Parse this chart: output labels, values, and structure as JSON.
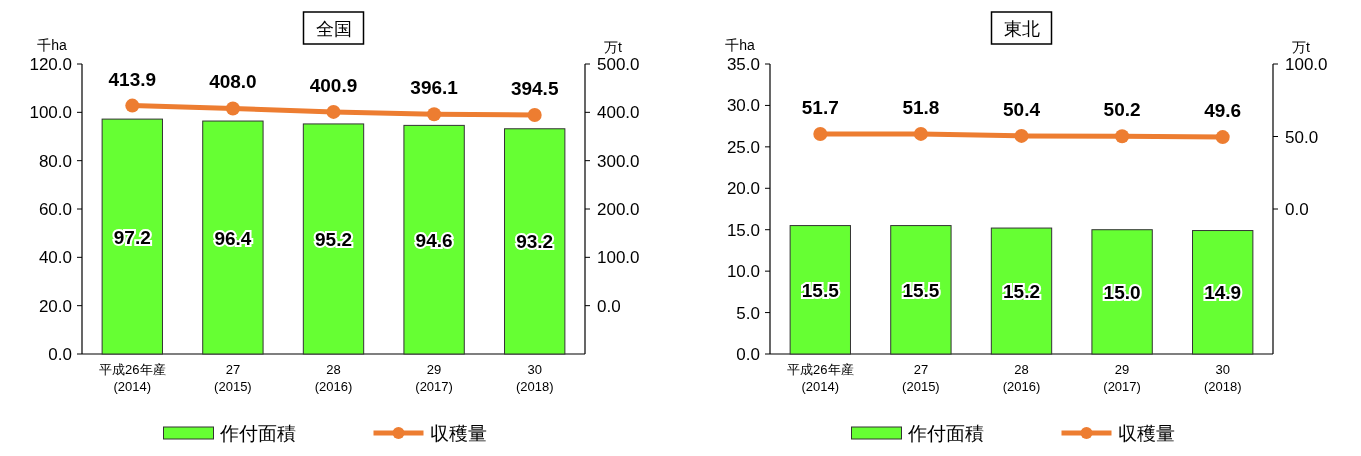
{
  "chart_data": [
    {
      "type": "bar",
      "title": "全国",
      "ylabel": "千ha",
      "y2label": "万t",
      "categories": [
        "平成26年産\n(2014)",
        "27\n(2015)",
        "28\n(2016)",
        "29\n(2017)",
        "30\n(2018)"
      ],
      "series": [
        {
          "name": "作付面積",
          "color": "#66ff33",
          "values": [
            97.2,
            96.4,
            95.2,
            94.6,
            93.2
          ],
          "value_labels": [
            "97.2",
            "96.4",
            "95.2",
            "94.6",
            "93.2"
          ]
        },
        {
          "name": "収穫量",
          "type": "line",
          "axis": "y2",
          "color": "#ed7d31",
          "marker": "circle",
          "values": [
            413.9,
            408.0,
            400.9,
            396.1,
            394.5
          ],
          "value_labels": [
            "413.9",
            "408.0",
            "400.9",
            "396.1",
            "394.5"
          ]
        }
      ],
      "ylim": [
        0,
        120
      ],
      "yticks": [
        {
          "value": 0,
          "label": "0.0"
        },
        {
          "value": 20,
          "label": "20.0"
        },
        {
          "value": 40,
          "label": "40.0"
        },
        {
          "value": 60,
          "label": "60.0"
        },
        {
          "value": 80,
          "label": "80.0"
        },
        {
          "value": 100,
          "label": "100.0"
        },
        {
          "value": 120,
          "label": "120.0"
        }
      ],
      "y2lim": [
        -100,
        500
      ],
      "y2ticks": [
        {
          "value": 0,
          "label": "0.0"
        },
        {
          "value": 100,
          "label": "100.0"
        },
        {
          "value": 200,
          "label": "200.0"
        },
        {
          "value": 300,
          "label": "300.0"
        },
        {
          "value": 400,
          "label": "400.0"
        },
        {
          "value": 500,
          "label": "500.0"
        }
      ],
      "legend": "bottom"
    },
    {
      "type": "bar",
      "title": "東北",
      "ylabel": "千ha",
      "y2label": "万t",
      "categories": [
        "平成26年産\n(2014)",
        "27\n(2015)",
        "28\n(2016)",
        "29\n(2017)",
        "30\n(2018)"
      ],
      "series": [
        {
          "name": "作付面積",
          "color": "#66ff33",
          "values": [
            15.5,
            15.5,
            15.2,
            15.0,
            14.9
          ],
          "value_labels": [
            "15.5",
            "15.5",
            "15.2",
            "15.0",
            "14.9"
          ]
        },
        {
          "name": "収穫量",
          "type": "line",
          "axis": "y2",
          "color": "#ed7d31",
          "marker": "circle",
          "values": [
            51.7,
            51.8,
            50.4,
            50.2,
            49.6
          ],
          "value_labels": [
            "51.7",
            "51.8",
            "50.4",
            "50.2",
            "49.6"
          ]
        }
      ],
      "ylim": [
        0,
        35
      ],
      "yticks": [
        {
          "value": 0,
          "label": "0.0"
        },
        {
          "value": 5,
          "label": "5.0"
        },
        {
          "value": 10,
          "label": "10.0"
        },
        {
          "value": 15,
          "label": "15.0"
        },
        {
          "value": 20,
          "label": "20.0"
        },
        {
          "value": 25,
          "label": "25.0"
        },
        {
          "value": 30,
          "label": "30.0"
        },
        {
          "value": 35,
          "label": "35.0"
        }
      ],
      "y2lim": [
        -100,
        100
      ],
      "y2ticks": [
        {
          "value": 0,
          "label": "0.0"
        },
        {
          "value": 50,
          "label": "50.0"
        },
        {
          "value": 100,
          "label": "100.0"
        }
      ],
      "legend": "bottom"
    }
  ]
}
